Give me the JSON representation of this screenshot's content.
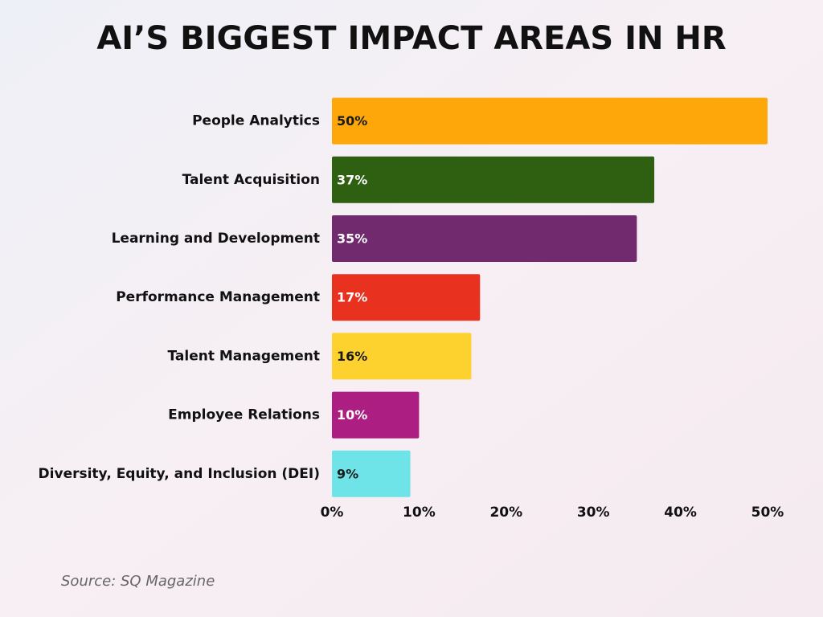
{
  "chart_data": {
    "type": "bar",
    "orientation": "horizontal",
    "title": "AI’S BIGGEST IMPACT AREAS IN HR",
    "categories": [
      "People Analytics",
      "Talent Acquisition",
      "Learning and Development",
      "Performance Management",
      "Talent Management",
      "Employee Relations",
      "Diversity, Equity, and Inclusion (DEI)"
    ],
    "values": [
      50,
      37,
      35,
      17,
      16,
      10,
      9
    ],
    "value_labels": [
      "50%",
      "37%",
      "35%",
      "17%",
      "16%",
      "10%",
      "9%"
    ],
    "colors": [
      "#fda70a",
      "#2f5f10",
      "#722a6f",
      "#e8311f",
      "#fdd22f",
      "#ad1e83",
      "#6ee4e8"
    ],
    "xlim": [
      0,
      50
    ],
    "xticks": [
      {
        "value": 0,
        "label": "0%"
      },
      {
        "value": 10,
        "label": "10%"
      },
      {
        "value": 20,
        "label": "20%"
      },
      {
        "value": 30,
        "label": "30%"
      },
      {
        "value": 40,
        "label": "40%"
      },
      {
        "value": 50,
        "label": "50%"
      }
    ],
    "grid": false,
    "source": "Source: SQ Magazine"
  }
}
